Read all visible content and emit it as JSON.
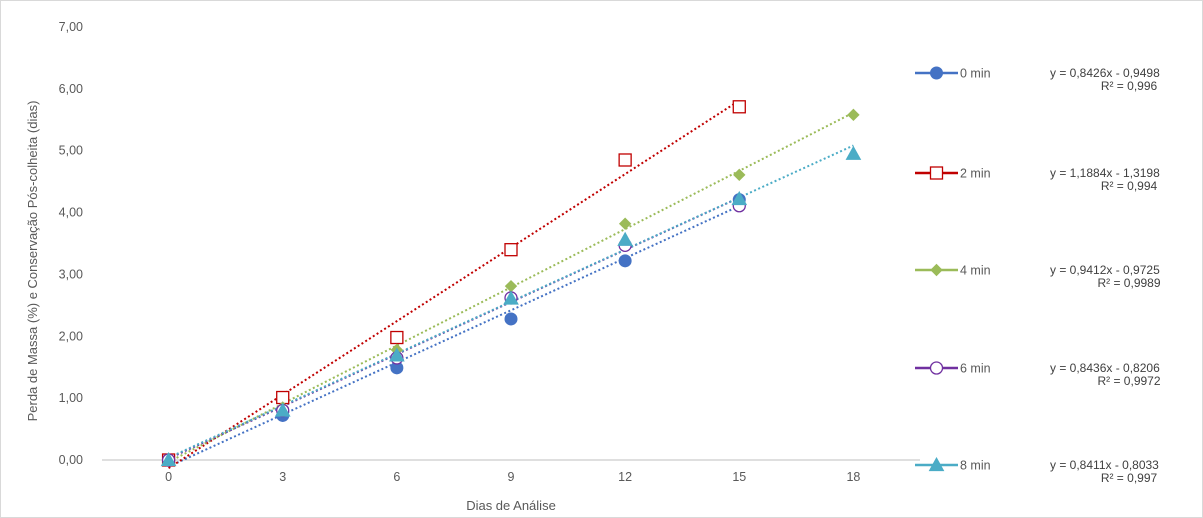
{
  "chart_data": {
    "type": "scatter",
    "xlabel": "Dias de Análise",
    "ylabel": "Perda de Massa (%) e Conservação Pós-colheita (dias)",
    "categories": [
      "0",
      "3",
      "6",
      "9",
      "12",
      "15",
      "18"
    ],
    "ylim": [
      0,
      7
    ],
    "yticks": [
      "0,00",
      "1,00",
      "2,00",
      "3,00",
      "4,00",
      "5,00",
      "6,00",
      "7,00"
    ],
    "grid": false,
    "legend_position": "right",
    "series": [
      {
        "name": "0 min",
        "color": "#4472C4",
        "marker": "circle-filled",
        "x": [
          0,
          3,
          6,
          9,
          12,
          15
        ],
        "y": [
          0.0,
          0.72,
          1.49,
          2.28,
          3.22,
          4.21
        ],
        "trendline": {
          "slope": 0.8426,
          "intercept": -0.9498,
          "x_range": [
            0,
            15
          ]
        },
        "equation": "y = 0,8426x - 0,9498",
        "r2": "R² = 0,996"
      },
      {
        "name": "2 min",
        "color": "#C00000",
        "marker": "square-open",
        "x": [
          0,
          3,
          6,
          9,
          12,
          15
        ],
        "y": [
          0.0,
          1.01,
          1.98,
          3.4,
          4.85,
          5.71
        ],
        "trendline": {
          "slope": 1.1884,
          "intercept": -1.3198,
          "x_range": [
            0,
            15
          ]
        },
        "equation": "y = 1,1884x - 1,3198",
        "r2": "R² = 0,994"
      },
      {
        "name": "4 min",
        "color": "#9BBB59",
        "marker": "diamond-filled",
        "x": [
          0,
          3,
          6,
          9,
          12,
          15,
          18
        ],
        "y": [
          0.0,
          0.85,
          1.78,
          2.81,
          3.82,
          4.61,
          5.58
        ],
        "trendline": {
          "slope": 0.9412,
          "intercept": -0.9725,
          "x_range": [
            0,
            18
          ]
        },
        "equation": "y = 0,9412x - 0,9725",
        "r2": "R² = 0,9989"
      },
      {
        "name": "6 min",
        "color": "#7030A0",
        "marker": "circle-open",
        "x": [
          0,
          3,
          6,
          9,
          12,
          15
        ],
        "y": [
          0.0,
          0.8,
          1.65,
          2.62,
          3.47,
          4.11
        ],
        "trendline": {
          "slope": 0.8436,
          "intercept": -0.8206,
          "x_range": [
            0,
            15
          ]
        },
        "equation": "y = 0,8436x - 0,8206",
        "r2": "R² = 0,9972"
      },
      {
        "name": "8 min",
        "color": "#4BACC6",
        "marker": "triangle-filled",
        "x": [
          0,
          3,
          6,
          9,
          12,
          15,
          18
        ],
        "y": [
          0.0,
          0.8,
          1.69,
          2.61,
          3.56,
          4.22,
          4.95
        ],
        "trendline": {
          "slope": 0.8411,
          "intercept": -0.8033,
          "x_range": [
            0,
            18
          ]
        },
        "equation": "y = 0,8411x - 0,8033",
        "r2": "R² = 0,997"
      }
    ]
  }
}
